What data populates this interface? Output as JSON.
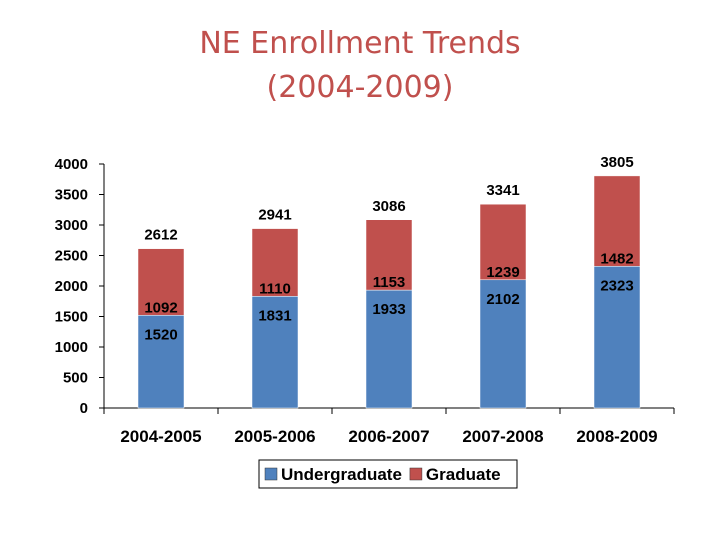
{
  "title": {
    "line1": "NE Enrollment Trends",
    "line2": "(2004-2009)"
  },
  "chart_data": {
    "type": "bar",
    "stacked": true,
    "categories": [
      "2004-2005",
      "2005-2006",
      "2006-2007",
      "2007-2008",
      "2008-2009"
    ],
    "series": [
      {
        "name": "Undergraduate",
        "color": "#4f81bd",
        "values": [
          1520,
          1831,
          1933,
          2102,
          2323
        ]
      },
      {
        "name": "Graduate",
        "color": "#c0504d",
        "values": [
          1092,
          1110,
          1153,
          1239,
          1482
        ]
      }
    ],
    "totals": [
      2612,
      2941,
      3086,
      3341,
      3805
    ],
    "ylim": [
      0,
      4000
    ],
    "yticks": [
      0,
      500,
      1000,
      1500,
      2000,
      2500,
      3000,
      3500,
      4000
    ],
    "grid": false,
    "legend_position": "bottom"
  }
}
